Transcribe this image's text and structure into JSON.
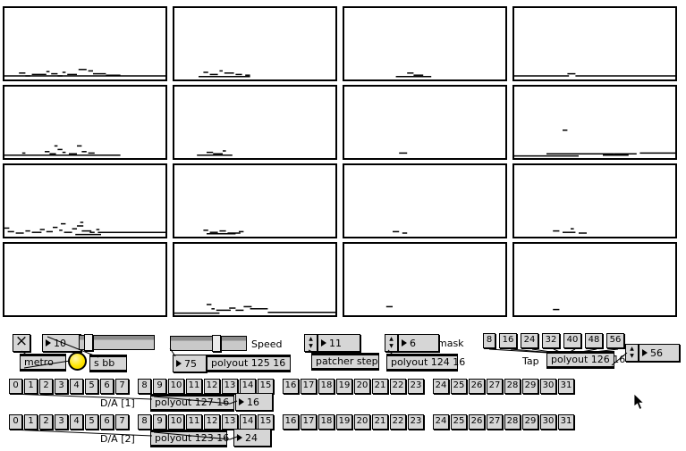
{
  "icons": {
    "toggle_x": "×",
    "up_arrow": "▲",
    "down_arrow": "▼"
  },
  "controls": {
    "metro_rate": "10",
    "metro_label": "metro",
    "send_label": "s bb",
    "speed_label": "Speed",
    "speed_value": "75",
    "polyout_speed_label": "polyout 125 16",
    "step_value": "11",
    "patcher_step_label": "patcher step",
    "mask_value": "6",
    "mask_label": "mask",
    "polyout_mask_label": "polyout 124 16",
    "tap_values": [
      "8",
      "16",
      "24",
      "32",
      "40",
      "48",
      "56"
    ],
    "tap_label": "Tap",
    "polyout_tap_label": "polyout 126 16",
    "tap_count_value": "56"
  },
  "id_button_labels": [
    "0",
    "1",
    "2",
    "3",
    "4",
    "5",
    "6",
    "7",
    "8",
    "9",
    "10",
    "11",
    "12",
    "13",
    "14",
    "15",
    "16",
    "17",
    "18",
    "19",
    "20",
    "21",
    "22",
    "23",
    "24",
    "25",
    "26",
    "27",
    "28",
    "29",
    "30",
    "31"
  ],
  "da1": {
    "label": "D/A [1]",
    "polyout_label": "polyout 127 16",
    "value": "16"
  },
  "da2": {
    "label": "D/A [2]",
    "polyout_label": "polyout 123 16",
    "value": "24"
  },
  "chart_data": {
    "type": "heatmap",
    "title": "",
    "note": "4x4 grid of multislider displays; each mark is [x_percent, y_percent, length_percent] of a short value dash near the bottom of the panel"
  },
  "panels": [
    [
      [
        0,
        95,
        100
      ],
      [
        9,
        91,
        4
      ],
      [
        13,
        95,
        3
      ],
      [
        17,
        93,
        9
      ],
      [
        26,
        89,
        2
      ],
      [
        29,
        92,
        4
      ],
      [
        33,
        95,
        3
      ],
      [
        36,
        90,
        2
      ],
      [
        39,
        93,
        6
      ],
      [
        46,
        86,
        5
      ],
      [
        52,
        88,
        3
      ],
      [
        55,
        92,
        8
      ],
      [
        63,
        94,
        9
      ]
    ],
    [
      [
        15,
        96,
        32
      ],
      [
        18,
        90,
        3
      ],
      [
        22,
        93,
        5
      ],
      [
        28,
        88,
        2
      ],
      [
        31,
        91,
        6
      ],
      [
        38,
        93,
        4
      ],
      [
        44,
        94,
        3
      ]
    ],
    [
      [
        32,
        96,
        22
      ],
      [
        39,
        91,
        4
      ],
      [
        43,
        94,
        6
      ]
    ],
    [
      [
        0,
        95,
        34
      ],
      [
        33,
        92,
        5
      ],
      [
        38,
        95,
        62
      ]
    ],
    [
      [
        0,
        96,
        40
      ],
      [
        11,
        93,
        2
      ],
      [
        25,
        91,
        3
      ],
      [
        28,
        94,
        4
      ],
      [
        31,
        83,
        2
      ],
      [
        33,
        88,
        3
      ],
      [
        36,
        92,
        2
      ],
      [
        40,
        94,
        5
      ],
      [
        45,
        83,
        3
      ],
      [
        48,
        91,
        3
      ],
      [
        52,
        93,
        4
      ],
      [
        40,
        96,
        32
      ]
    ],
    [
      [
        14,
        96,
        22
      ],
      [
        20,
        92,
        4
      ],
      [
        24,
        94,
        6
      ],
      [
        30,
        90,
        2
      ]
    ],
    [
      [
        34,
        93,
        5
      ]
    ],
    [
      [
        0,
        97,
        40
      ],
      [
        20,
        94,
        42
      ],
      [
        30,
        61,
        3
      ],
      [
        55,
        96,
        16
      ],
      [
        62,
        94,
        14
      ],
      [
        78,
        93,
        22
      ]
    ],
    [
      [
        0,
        88,
        3
      ],
      [
        2,
        93,
        4
      ],
      [
        7,
        95,
        5
      ],
      [
        13,
        92,
        3
      ],
      [
        17,
        94,
        6
      ],
      [
        22,
        90,
        3
      ],
      [
        26,
        93,
        4
      ],
      [
        30,
        87,
        3
      ],
      [
        34,
        91,
        2
      ],
      [
        37,
        94,
        5
      ],
      [
        42,
        89,
        3
      ],
      [
        45,
        85,
        4
      ],
      [
        48,
        92,
        6
      ],
      [
        53,
        94,
        3
      ],
      [
        57,
        90,
        2
      ],
      [
        35,
        82,
        3
      ],
      [
        47,
        80,
        2
      ],
      [
        44,
        97,
        16
      ],
      [
        58,
        94,
        42
      ]
    ],
    [
      [
        20,
        96,
        18
      ],
      [
        18,
        91,
        3
      ],
      [
        22,
        94,
        5
      ],
      [
        28,
        92,
        4
      ],
      [
        33,
        95,
        8
      ],
      [
        40,
        93,
        3
      ]
    ],
    [
      [
        30,
        93,
        4
      ],
      [
        36,
        95,
        3
      ]
    ],
    [
      [
        24,
        92,
        4
      ],
      [
        30,
        94,
        8
      ],
      [
        40,
        95,
        5
      ],
      [
        35,
        89,
        2
      ]
    ],
    [],
    [
      [
        0,
        97,
        28
      ],
      [
        20,
        85,
        3
      ],
      [
        23,
        91,
        2
      ],
      [
        26,
        93,
        9
      ],
      [
        34,
        90,
        4
      ],
      [
        38,
        93,
        5
      ],
      [
        43,
        88,
        5
      ],
      [
        47,
        91,
        11
      ],
      [
        58,
        96,
        42
      ]
    ],
    [
      [
        26,
        88,
        4
      ]
    ],
    [
      [
        24,
        92,
        4
      ]
    ]
  ]
}
